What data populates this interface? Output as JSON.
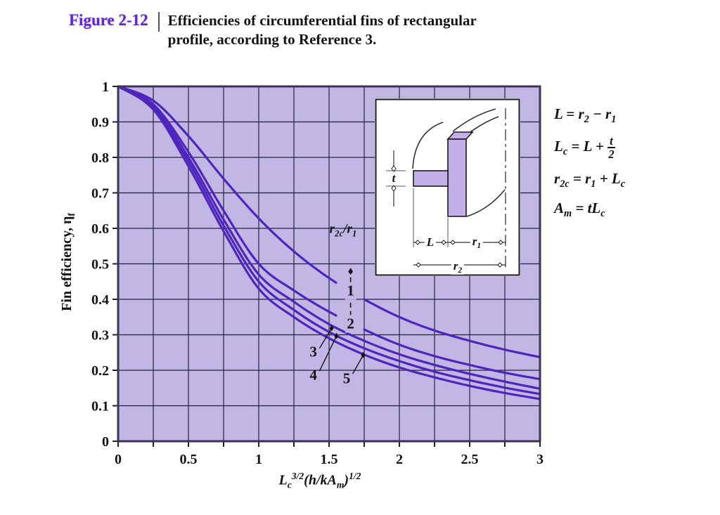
{
  "header": {
    "figure_label": "Figure 2-12",
    "caption_line1": "Efficiencies of circumferential fins of rectangular",
    "caption_line2": "profile, according to Reference 3."
  },
  "colors": {
    "figure_label": "#5a2acd",
    "curve": "#4e26bd",
    "plot_bg": "#c1b6e4",
    "grid": "#23233f",
    "frame": "#383357",
    "text": "#141414",
    "inset_fill": "#c4afe8",
    "bundle_tint": "#2e6f93"
  },
  "chart_data": {
    "type": "line",
    "title": "Efficiencies of circumferential fins of rectangular profile",
    "xlabel": "L_{c}^{3/2}(h/kA_{m})^{1/2}",
    "ylabel": "Fin efficiency, η_{f}",
    "xlim": [
      0,
      3
    ],
    "ylim": [
      0,
      1
    ],
    "grid": true,
    "grid_step_x": 0.25,
    "grid_step_y": 0.1,
    "x_tick_values": [
      0,
      0.5,
      1,
      1.5,
      2,
      2.5,
      3
    ],
    "x_tick_labels": [
      "0",
      "0.5",
      "1",
      "1.5",
      "2",
      "2.5",
      "3"
    ],
    "y_tick_values": [
      1,
      0.9,
      0.8,
      0.7,
      0.6,
      0.5,
      0.4,
      0.3,
      0.2,
      0.1,
      0
    ],
    "y_tick_labels": [
      "1",
      "0.9",
      "0.8",
      "0.7",
      "0.6",
      "0.5",
      "0.4",
      "0.3",
      "0.2",
      "0.1",
      "0"
    ],
    "series_parameter": "r_{2c}/r_{1}",
    "x": [
      0,
      0.25,
      0.5,
      0.75,
      1.0,
      1.25,
      1.5,
      1.75,
      2.0,
      2.25,
      2.5,
      2.75,
      3.0
    ],
    "series": [
      {
        "name": "1",
        "ratio": 1,
        "values": [
          1.0,
          0.96,
          0.86,
          0.74,
          0.628,
          0.535,
          0.46,
          0.4,
          0.35,
          0.312,
          0.283,
          0.258,
          0.237
        ]
      },
      {
        "name": "2",
        "ratio": 2,
        "values": [
          1.0,
          0.95,
          0.815,
          0.65,
          0.5,
          0.425,
          0.365,
          0.315,
          0.272,
          0.24,
          0.215,
          0.193,
          0.175
        ]
      },
      {
        "name": "3",
        "ratio": 3,
        "values": [
          1.0,
          0.945,
          0.8,
          0.625,
          0.47,
          0.393,
          0.33,
          0.283,
          0.245,
          0.215,
          0.19,
          0.168,
          0.148
        ]
      },
      {
        "name": "4",
        "ratio": 4,
        "values": [
          1.0,
          0.94,
          0.788,
          0.608,
          0.45,
          0.37,
          0.308,
          0.262,
          0.226,
          0.196,
          0.172,
          0.151,
          0.133
        ]
      },
      {
        "name": "5",
        "ratio": 5,
        "values": [
          1.0,
          0.935,
          0.775,
          0.592,
          0.43,
          0.35,
          0.29,
          0.244,
          0.208,
          0.18,
          0.156,
          0.136,
          0.119
        ]
      }
    ]
  },
  "equations": [
    "L = r_{2} − r_{1}",
    "L_{c} = L + frac(t,2)",
    "r_{2c} = r_{1} + L_{c}",
    "A_{m} = tL_{c}"
  ],
  "inset": {
    "labels": {
      "t": "t",
      "L": "L",
      "r1": "r_{1}",
      "r2": "r_{2}"
    }
  }
}
